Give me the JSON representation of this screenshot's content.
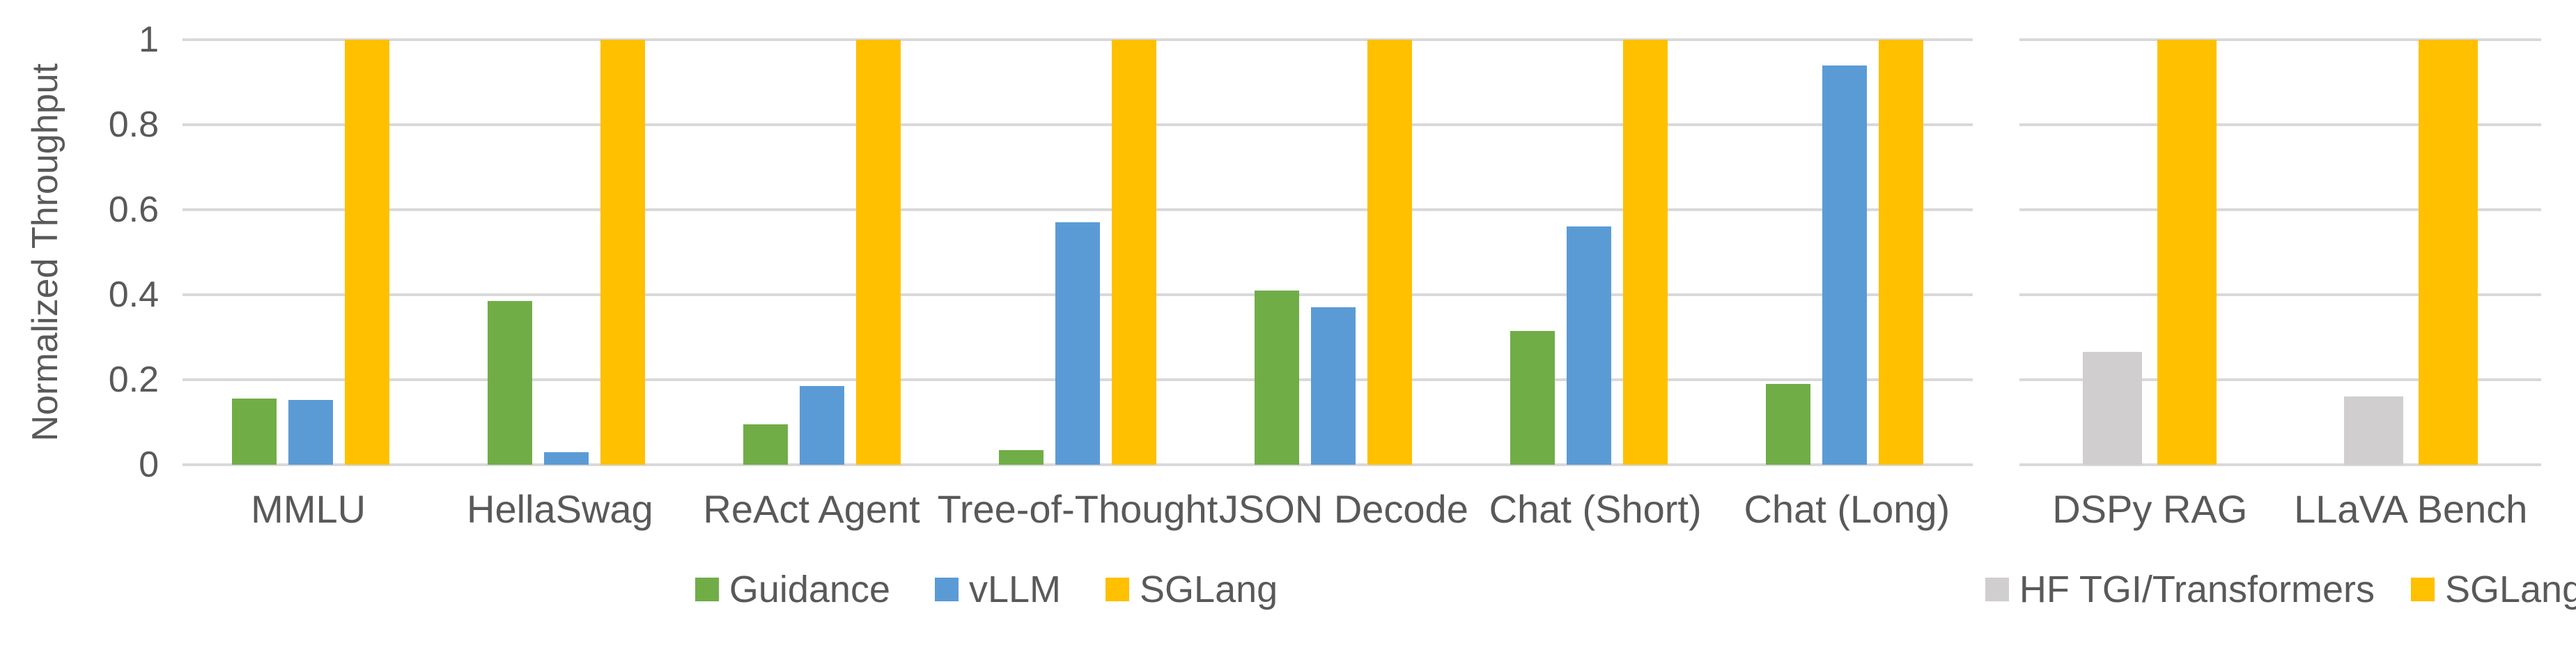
{
  "page": {
    "background": "#FFFFFF"
  },
  "y_axis": {
    "title": "Normalized Throughput",
    "ticks": [
      "1",
      "0.8",
      "0.6",
      "0.4",
      "0.2",
      "0"
    ],
    "min": 0,
    "max": 1
  },
  "colors": {
    "guidance_green": "#70AD47",
    "vllm_blue": "#5B9BD5",
    "sglang_gold": "#FFC000",
    "hf_gray": "#D0CECE",
    "text_gray": "#595959",
    "gridline_gray": "#D9D9D9"
  },
  "chart_data": [
    {
      "type": "bar",
      "title": "",
      "xlabel": "",
      "ylabel": "Normalized Throughput",
      "ylim": [
        0,
        1
      ],
      "grid": true,
      "legend_position": "bottom",
      "categories": [
        "MMLU",
        "HellaSwag",
        "ReAct Agent",
        "Tree-of-Thought",
        "JSON Decode",
        "Chat (Short)",
        "Chat (Long)"
      ],
      "series": [
        {
          "name": "Guidance",
          "color": "#70AD47",
          "values": [
            0.155,
            0.385,
            0.095,
            0.035,
            0.41,
            0.315,
            0.19
          ]
        },
        {
          "name": "vLLM",
          "color": "#5B9BD5",
          "values": [
            0.152,
            0.03,
            0.185,
            0.57,
            0.37,
            0.56,
            0.94
          ]
        },
        {
          "name": "SGLang",
          "color": "#FFC000",
          "values": [
            1,
            1,
            1,
            1,
            1,
            1,
            1
          ]
        }
      ]
    },
    {
      "type": "bar",
      "title": "",
      "xlabel": "",
      "ylabel": "Normalized Throughput",
      "ylim": [
        0,
        1
      ],
      "grid": true,
      "legend_position": "bottom",
      "categories": [
        "DSPy RAG",
        "LLaVA Bench"
      ],
      "series": [
        {
          "name": "HF TGI/Transformers",
          "color": "#D0CECE",
          "values": [
            0.265,
            0.16
          ]
        },
        {
          "name": "SGLang",
          "color": "#FFC000",
          "values": [
            1,
            1
          ]
        }
      ]
    }
  ]
}
